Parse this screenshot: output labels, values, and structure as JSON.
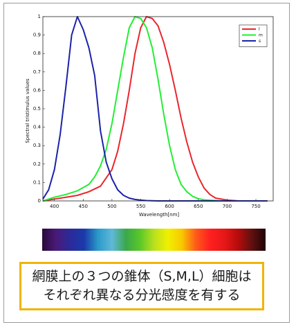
{
  "chart_data": {
    "type": "line",
    "xlabel": "Wavelength[nm]",
    "ylabel": "Spectral tristimulus values",
    "xlim": [
      380,
      780
    ],
    "ylim": [
      0,
      1
    ],
    "xticks": [
      "400",
      "450",
      "500",
      "550",
      "600",
      "650",
      "700",
      "750"
    ],
    "yticks": [
      "0",
      "0.1",
      "0.2",
      "0.3",
      "0.4",
      "0.5",
      "0.6",
      "0.7",
      "0.8",
      "0.9",
      "1"
    ],
    "legend_position": "top-right",
    "grid": false,
    "series": [
      {
        "name": "l",
        "color": "#e8262c",
        "x": [
          380,
          400,
          420,
          440,
          460,
          480,
          500,
          510,
          520,
          530,
          540,
          550,
          560,
          570,
          580,
          590,
          600,
          610,
          620,
          630,
          640,
          650,
          660,
          670,
          680,
          700,
          720,
          750,
          770
        ],
        "y": [
          0.0,
          0.01,
          0.02,
          0.03,
          0.05,
          0.08,
          0.17,
          0.27,
          0.42,
          0.6,
          0.8,
          0.94,
          1.0,
          0.99,
          0.95,
          0.86,
          0.74,
          0.6,
          0.45,
          0.32,
          0.21,
          0.13,
          0.07,
          0.035,
          0.015,
          0.005,
          0.0,
          0.0,
          0.0
        ]
      },
      {
        "name": "m",
        "color": "#22ee33",
        "x": [
          380,
          400,
          420,
          440,
          460,
          470,
          480,
          490,
          500,
          510,
          520,
          530,
          540,
          550,
          560,
          570,
          580,
          590,
          600,
          610,
          620,
          630,
          640,
          650,
          660,
          680,
          700,
          750,
          770
        ],
        "y": [
          0.0,
          0.02,
          0.035,
          0.055,
          0.09,
          0.13,
          0.19,
          0.28,
          0.42,
          0.6,
          0.78,
          0.94,
          1.0,
          0.99,
          0.94,
          0.83,
          0.66,
          0.47,
          0.3,
          0.17,
          0.09,
          0.05,
          0.025,
          0.012,
          0.006,
          0.002,
          0.0,
          0.0,
          0.0
        ]
      },
      {
        "name": "s",
        "color": "#1a22a8",
        "x": [
          380,
          390,
          400,
          410,
          420,
          430,
          440,
          450,
          460,
          470,
          480,
          490,
          500,
          510,
          520,
          530,
          540,
          550,
          560,
          580,
          600,
          650,
          700,
          770
        ],
        "y": [
          0.01,
          0.06,
          0.17,
          0.36,
          0.62,
          0.9,
          1.0,
          0.93,
          0.83,
          0.68,
          0.38,
          0.21,
          0.12,
          0.06,
          0.03,
          0.015,
          0.008,
          0.004,
          0.002,
          0.0,
          0.0,
          0.0,
          0.0,
          0.0
        ]
      }
    ]
  },
  "spectrum": {
    "stops": [
      "#2a0a3a",
      "#4a1a7a",
      "#2a2a9a",
      "#1a3aaa",
      "#2a9ac8",
      "#60b8d8",
      "#3aa84a",
      "#5ac828",
      "#b8e020",
      "#f0f000",
      "#f8c800",
      "#ff5a1a",
      "#ff2020",
      "#e81818",
      "#b80c0c",
      "#601010",
      "#200404"
    ]
  },
  "caption": {
    "line1": "網膜上の３つの錐体（S,M,L）細胞は",
    "line2": "それぞれ異なる分光感度を有する"
  }
}
